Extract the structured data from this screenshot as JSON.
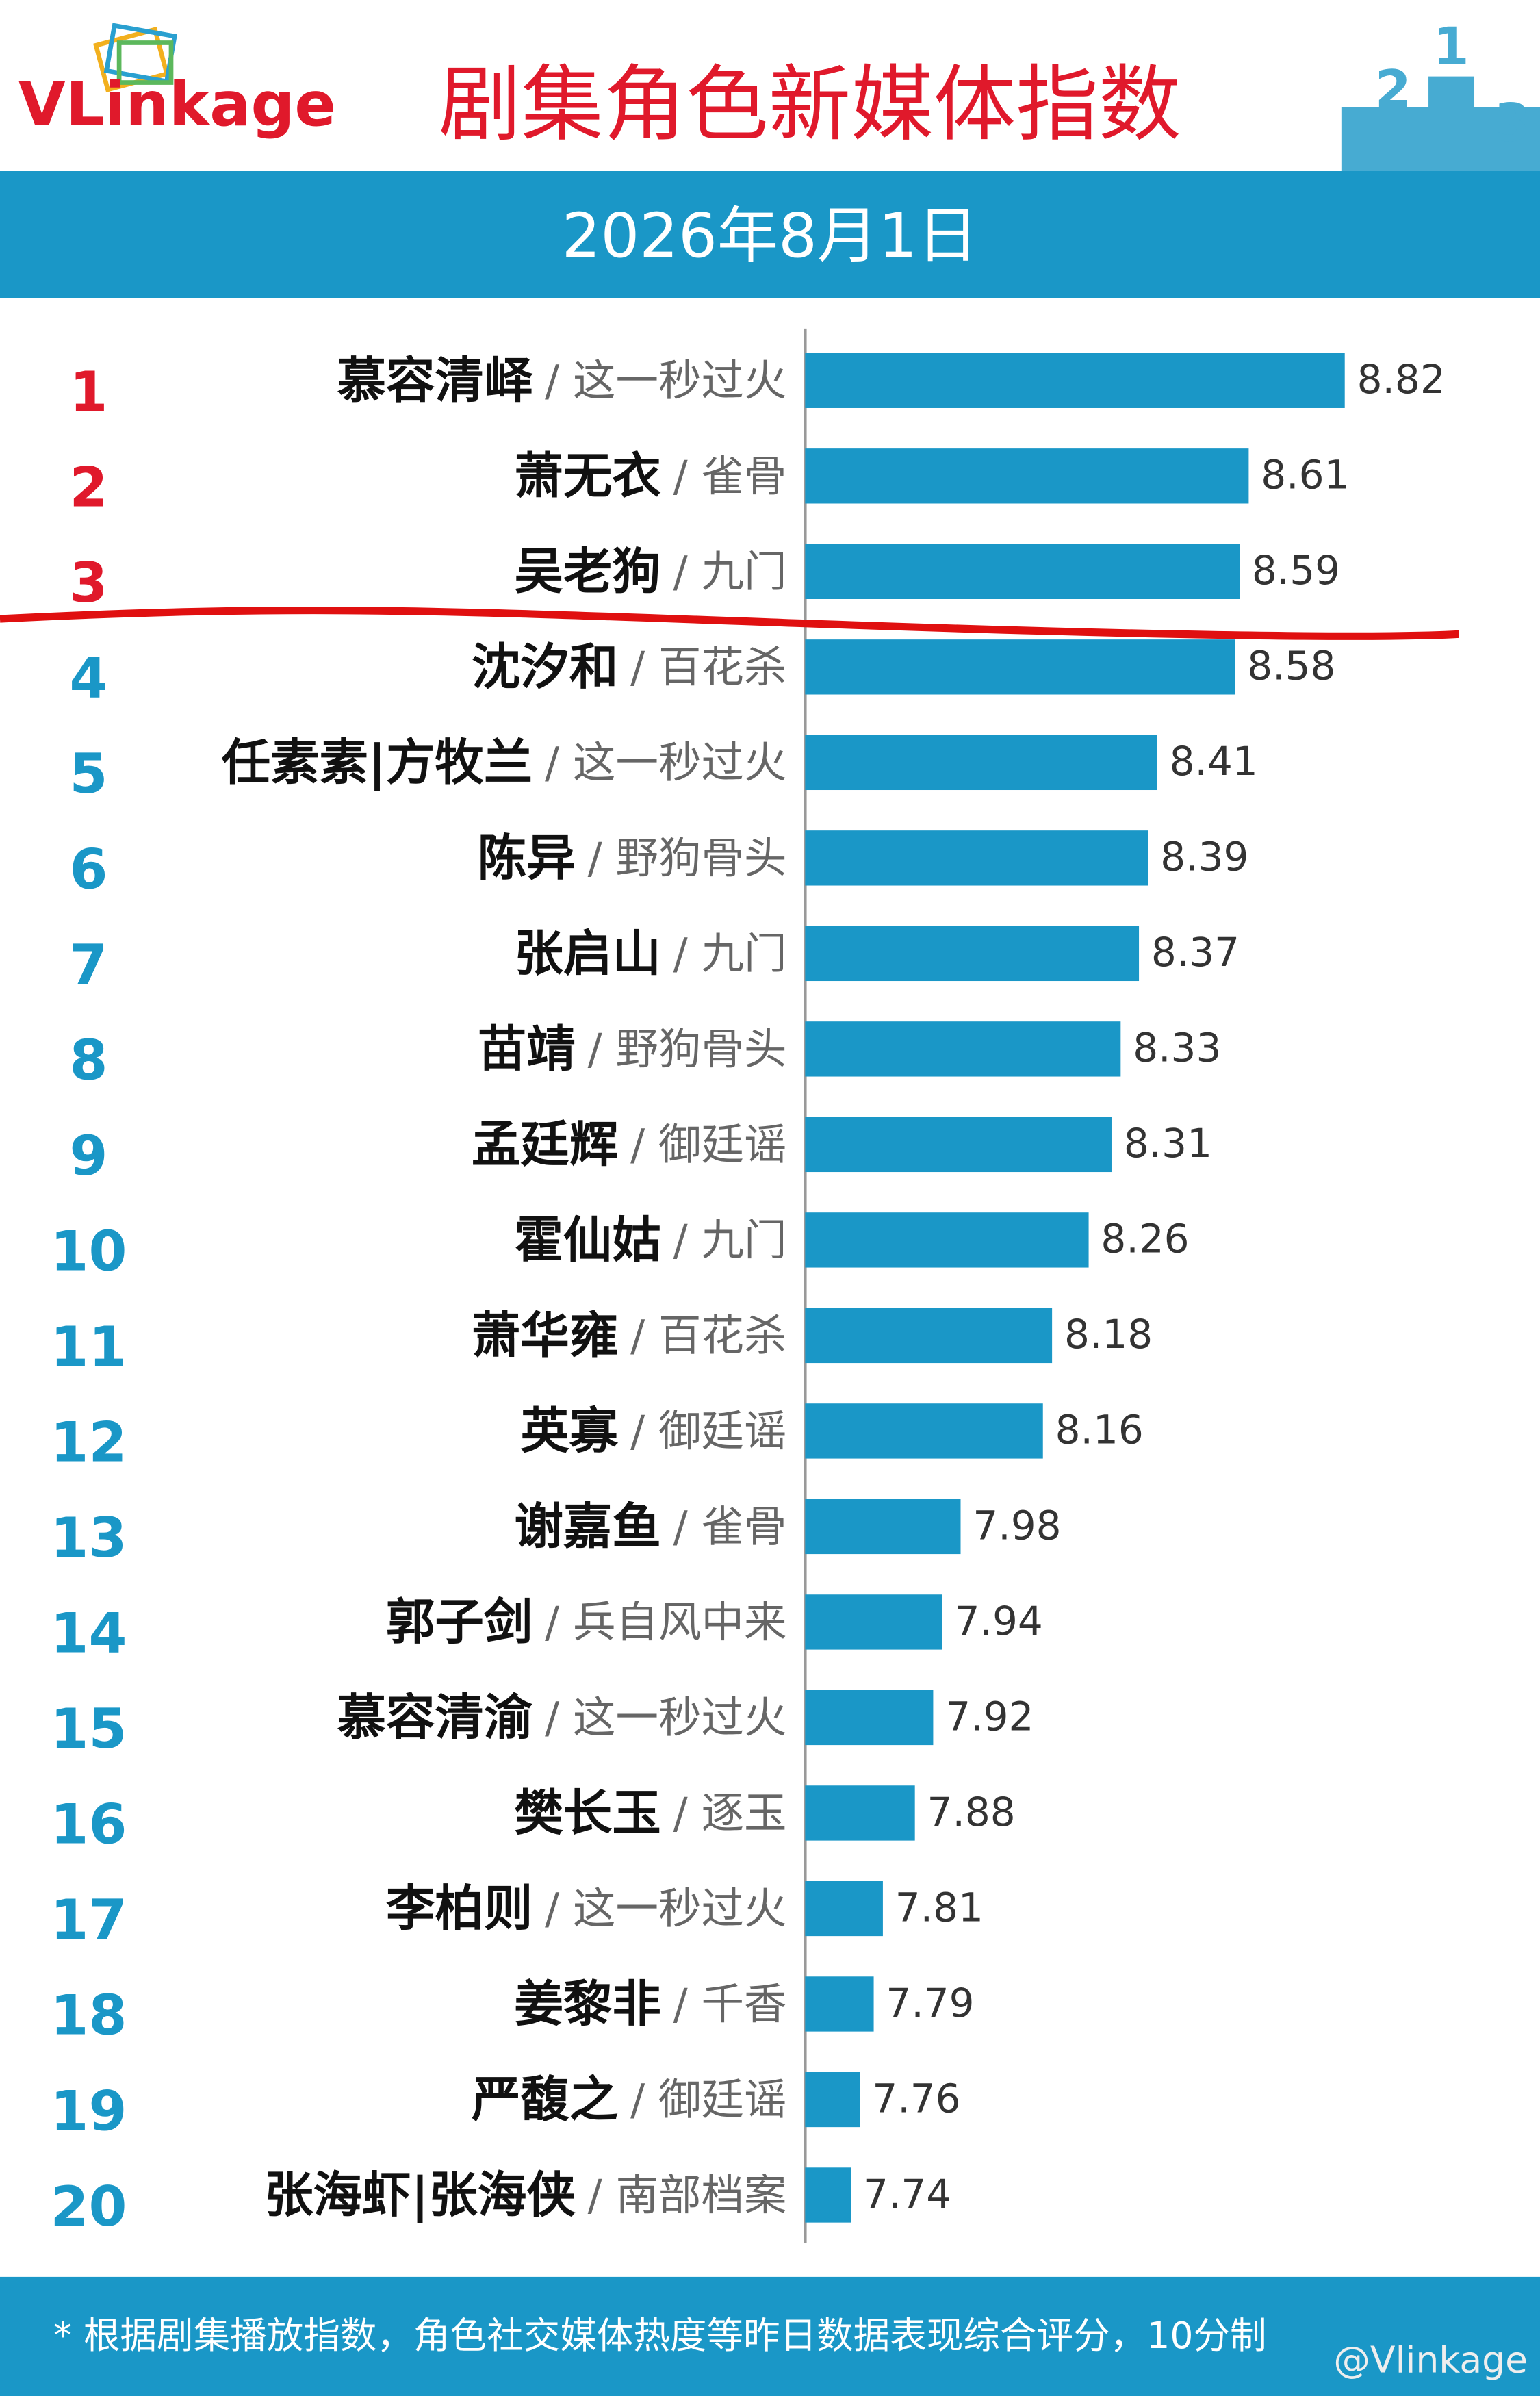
{
  "logo": "VLinkage",
  "chart_data": {
    "type": "bar",
    "orientation": "horizontal",
    "title": "剧集角色新媒体指数",
    "subtitle": "2026年8月1日",
    "ranks": [
      1,
      2,
      3,
      4,
      5,
      6,
      7,
      8,
      9,
      10,
      11,
      12,
      13,
      14,
      15,
      16,
      17,
      18,
      19,
      20
    ],
    "categories": [
      "慕容清峄",
      "萧无衣",
      "吴老狗",
      "沈汐和",
      "任素素|方牧兰",
      "陈异",
      "张启山",
      "苗靖",
      "孟廷辉",
      "霍仙姑",
      "萧华雍",
      "英寡",
      "谢嘉鱼",
      "郭子剑",
      "慕容清渝",
      "樊长玉",
      "李柏则",
      "姜黎非",
      "严馥之",
      "张海虾|张海侠"
    ],
    "shows": [
      "/ 这一秒过火",
      "/ 雀骨",
      "/ 九门",
      "/ 百花杀",
      "/ 这一秒过火",
      "/ 野狗骨头",
      "/ 九门",
      "/ 野狗骨头",
      "/ 御廷谣",
      "/ 九门",
      "/ 百花杀",
      "/ 御廷谣",
      "/ 雀骨",
      "/ 兵自风中来",
      "/ 这一秒过火",
      "/ 逐玉",
      "/ 这一秒过火",
      "/ 千香",
      "/ 御廷谣",
      "/ 南部档案"
    ],
    "values": [
      8.82,
      8.61,
      8.59,
      8.58,
      8.41,
      8.39,
      8.37,
      8.33,
      8.31,
      8.26,
      8.18,
      8.16,
      7.98,
      7.94,
      7.92,
      7.88,
      7.81,
      7.79,
      7.76,
      7.74
    ],
    "color": "#1a97c7",
    "top_rank_color": "#e0192b",
    "xlim": [
      7.64,
      9.1
    ]
  },
  "footer": {
    "note": "* 根据剧集播放指数，角色社交媒体热度等昨日数据表现综合评分，10分制",
    "watermark": "@Vlinkage"
  }
}
